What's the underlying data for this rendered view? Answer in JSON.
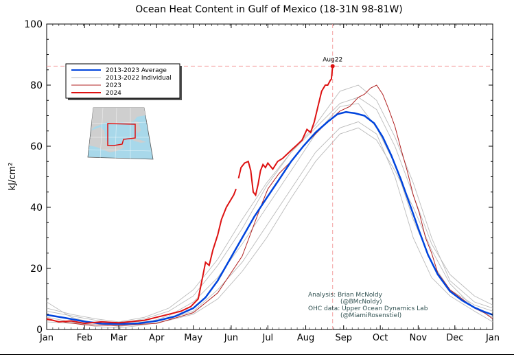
{
  "chart_data": {
    "type": "line",
    "title": "Ocean Heat Content in Gulf of Mexico (18-31N 98-81W)",
    "xlabel": "",
    "ylabel": "kJ/cm²",
    "xlim": [
      0,
      365
    ],
    "ylim": [
      0,
      100
    ],
    "yticks": [
      0,
      20,
      40,
      60,
      80,
      100
    ],
    "x_tick_labels": [
      "Jan",
      "Feb",
      "Mar",
      "Apr",
      "May",
      "Jun",
      "Jul",
      "Aug",
      "Sep",
      "Oct",
      "Nov",
      "Dec",
      "Jan"
    ],
    "x_tick_days": [
      0,
      31,
      59,
      90,
      120,
      151,
      181,
      212,
      243,
      273,
      304,
      334,
      365
    ],
    "grid": false,
    "legend_position": "upper-left",
    "series": [
      {
        "name": "2013-2023 Average",
        "color": "#0044dd",
        "points": [
          [
            0,
            4.8
          ],
          [
            15,
            3.8
          ],
          [
            31,
            2.6
          ],
          [
            45,
            1.9
          ],
          [
            59,
            1.8
          ],
          [
            75,
            2.0
          ],
          [
            90,
            2.8
          ],
          [
            105,
            4.3
          ],
          [
            120,
            7.0
          ],
          [
            130,
            10.5
          ],
          [
            140,
            16.0
          ],
          [
            150,
            23.0
          ],
          [
            160,
            30.0
          ],
          [
            170,
            37.0
          ],
          [
            180,
            43.0
          ],
          [
            190,
            49.0
          ],
          [
            200,
            55.0
          ],
          [
            210,
            60.0
          ],
          [
            220,
            64.5
          ],
          [
            230,
            68.0
          ],
          [
            238,
            70.5
          ],
          [
            245,
            71.2
          ],
          [
            252,
            70.8
          ],
          [
            260,
            70.0
          ],
          [
            268,
            67.5
          ],
          [
            275,
            63.0
          ],
          [
            282,
            57.0
          ],
          [
            290,
            49.0
          ],
          [
            298,
            40.0
          ],
          [
            305,
            32.0
          ],
          [
            312,
            24.5
          ],
          [
            320,
            18.0
          ],
          [
            330,
            12.5
          ],
          [
            340,
            9.5
          ],
          [
            350,
            7.2
          ],
          [
            358,
            5.8
          ],
          [
            365,
            4.8
          ]
        ]
      },
      {
        "name": "2024",
        "color": "#dd1111",
        "points": [
          [
            0,
            3.5
          ],
          [
            10,
            2.5
          ],
          [
            20,
            2.8
          ],
          [
            31,
            2.0
          ],
          [
            45,
            2.5
          ],
          [
            59,
            2.2
          ],
          [
            70,
            2.6
          ],
          [
            80,
            3.0
          ],
          [
            90,
            4.0
          ],
          [
            100,
            5.0
          ],
          [
            110,
            6.0
          ],
          [
            118,
            7.5
          ],
          [
            124,
            10.0
          ],
          [
            127,
            16.0
          ],
          [
            130,
            22.0
          ],
          [
            133,
            21.0
          ],
          [
            136,
            26.0
          ],
          [
            140,
            31.0
          ],
          [
            143,
            36.0
          ],
          [
            147,
            40.0
          ],
          [
            150,
            42.0
          ],
          [
            153,
            44.0
          ],
          [
            155,
            46.0
          ],
          [
            156,
            null
          ],
          [
            157,
            49.5
          ],
          [
            159,
            53.0
          ],
          [
            162,
            54.5
          ],
          [
            165,
            55.0
          ],
          [
            167,
            52.0
          ],
          [
            169,
            45.0
          ],
          [
            171,
            44.0
          ],
          [
            173,
            47.5
          ],
          [
            175,
            52.0
          ],
          [
            177,
            54.0
          ],
          [
            179,
            53.0
          ],
          [
            181,
            54.5
          ],
          [
            185,
            52.5
          ],
          [
            189,
            55.0
          ],
          [
            193,
            56.0
          ],
          [
            197,
            57.5
          ],
          [
            201,
            59.0
          ],
          [
            205,
            60.5
          ],
          [
            209,
            62.0
          ],
          [
            213,
            65.5
          ],
          [
            216,
            64.5
          ],
          [
            219,
            68.0
          ],
          [
            222,
            73.0
          ],
          [
            225,
            78.0
          ],
          [
            228,
            80.0
          ],
          [
            230,
            80.0
          ],
          [
            232,
            81.5
          ],
          [
            233,
            82.0
          ],
          [
            234,
            86.2
          ]
        ]
      },
      {
        "name": "2023",
        "color": "#b02020",
        "points": [
          [
            0,
            3.2
          ],
          [
            31,
            1.5
          ],
          [
            59,
            1.3
          ],
          [
            90,
            2.0
          ],
          [
            120,
            5.5
          ],
          [
            140,
            12.0
          ],
          [
            160,
            24.0
          ],
          [
            175,
            40.0
          ],
          [
            181,
            46.0
          ],
          [
            190,
            51.0
          ],
          [
            200,
            55.0
          ],
          [
            210,
            60.0
          ],
          [
            220,
            64.0
          ],
          [
            230,
            68.0
          ],
          [
            240,
            71.5
          ],
          [
            248,
            73.0
          ],
          [
            255,
            76.0
          ],
          [
            260,
            77.0
          ],
          [
            265,
            79.0
          ],
          [
            270,
            80.0
          ],
          [
            275,
            77.0
          ],
          [
            280,
            72.0
          ],
          [
            285,
            66.5
          ],
          [
            290,
            59.0
          ],
          [
            295,
            52.0
          ],
          [
            300,
            44.0
          ],
          [
            305,
            38.0
          ],
          [
            310,
            30.0
          ],
          [
            315,
            25.0
          ],
          [
            320,
            18.5
          ],
          [
            330,
            13.0
          ],
          [
            340,
            10.0
          ],
          [
            350,
            7.0
          ],
          [
            358,
            5.5
          ],
          [
            365,
            3.5
          ]
        ]
      },
      {
        "name": "2013-2022 Individual",
        "color": "#bbbbbb",
        "points": [
          [
            0,
            9.0
          ],
          [
            20,
            4.0
          ],
          [
            40,
            2.0
          ],
          [
            59,
            1.0
          ],
          [
            80,
            2.0
          ],
          [
            100,
            4.5
          ],
          [
            120,
            9.0
          ],
          [
            140,
            17.0
          ],
          [
            160,
            28.0
          ],
          [
            180,
            40.0
          ],
          [
            200,
            52.0
          ],
          [
            220,
            64.0
          ],
          [
            240,
            73.0
          ],
          [
            255,
            74.0
          ],
          [
            270,
            66.0
          ],
          [
            285,
            54.0
          ],
          [
            300,
            36.0
          ],
          [
            315,
            22.0
          ],
          [
            330,
            13.0
          ],
          [
            350,
            8.0
          ],
          [
            365,
            6.0
          ]
        ]
      },
      {
        "name": "2013-2022 Individual",
        "color": "#bbbbbb",
        "points": [
          [
            0,
            2.5
          ],
          [
            20,
            2.0
          ],
          [
            40,
            1.5
          ],
          [
            59,
            2.5
          ],
          [
            80,
            2.5
          ],
          [
            100,
            3.5
          ],
          [
            120,
            6.0
          ],
          [
            140,
            13.0
          ],
          [
            160,
            22.0
          ],
          [
            180,
            34.0
          ],
          [
            200,
            46.0
          ],
          [
            220,
            58.0
          ],
          [
            240,
            66.0
          ],
          [
            255,
            68.0
          ],
          [
            270,
            64.0
          ],
          [
            285,
            50.0
          ],
          [
            300,
            30.0
          ],
          [
            315,
            17.0
          ],
          [
            330,
            11.0
          ],
          [
            350,
            6.0
          ],
          [
            365,
            2.5
          ]
        ]
      },
      {
        "name": "2013-2022 Individual",
        "color": "#bbbbbb",
        "points": [
          [
            0,
            6.0
          ],
          [
            20,
            4.5
          ],
          [
            40,
            3.0
          ],
          [
            59,
            2.0
          ],
          [
            80,
            3.5
          ],
          [
            100,
            6.0
          ],
          [
            120,
            11.0
          ],
          [
            140,
            21.0
          ],
          [
            160,
            33.0
          ],
          [
            180,
            47.0
          ],
          [
            200,
            58.0
          ],
          [
            220,
            67.0
          ],
          [
            240,
            78.0
          ],
          [
            255,
            80.0
          ],
          [
            270,
            75.0
          ],
          [
            285,
            63.0
          ],
          [
            300,
            48.0
          ],
          [
            315,
            30.0
          ],
          [
            330,
            16.0
          ],
          [
            350,
            9.0
          ],
          [
            365,
            7.0
          ]
        ]
      },
      {
        "name": "2013-2022 Individual",
        "color": "#bbbbbb",
        "points": [
          [
            0,
            4.0
          ],
          [
            20,
            2.5
          ],
          [
            40,
            1.0
          ],
          [
            59,
            0.5
          ],
          [
            80,
            1.5
          ],
          [
            100,
            3.0
          ],
          [
            120,
            5.0
          ],
          [
            140,
            10.0
          ],
          [
            160,
            19.0
          ],
          [
            180,
            30.0
          ],
          [
            200,
            43.0
          ],
          [
            220,
            55.0
          ],
          [
            240,
            64.0
          ],
          [
            255,
            66.0
          ],
          [
            270,
            62.0
          ],
          [
            285,
            52.0
          ],
          [
            300,
            40.0
          ],
          [
            315,
            26.0
          ],
          [
            330,
            15.0
          ],
          [
            350,
            7.0
          ],
          [
            365,
            4.0
          ]
        ]
      },
      {
        "name": "2013-2022 Individual",
        "color": "#bbbbbb",
        "points": [
          [
            0,
            7.0
          ],
          [
            20,
            5.0
          ],
          [
            40,
            3.5
          ],
          [
            59,
            2.5
          ],
          [
            80,
            4.0
          ],
          [
            100,
            7.0
          ],
          [
            120,
            13.0
          ],
          [
            140,
            23.0
          ],
          [
            160,
            36.0
          ],
          [
            180,
            48.0
          ],
          [
            200,
            58.0
          ],
          [
            220,
            66.0
          ],
          [
            240,
            74.0
          ],
          [
            255,
            76.0
          ],
          [
            270,
            72.0
          ],
          [
            285,
            60.0
          ],
          [
            300,
            44.0
          ],
          [
            315,
            28.0
          ],
          [
            330,
            18.0
          ],
          [
            350,
            11.0
          ],
          [
            365,
            8.0
          ]
        ]
      }
    ],
    "annotations": [
      {
        "label": "Aug22",
        "x": 234,
        "y": 86.2
      },
      {
        "label": "Analysis: Brian McNoldy"
      },
      {
        "label": "(@BMcNoldy)"
      },
      {
        "label": "OHC data: Upper Ocean Dynamics Lab"
      },
      {
        "label": "(@MiamiRosenstiel)"
      }
    ],
    "reference_lines": {
      "x": 234,
      "y": 86.2,
      "color": "#f4a0a0"
    }
  },
  "inset_map": {
    "description_name": "gulf-of-mexico-locator-map",
    "colors": {
      "land": "#cfcfcf",
      "water": "#a8d8ea",
      "box": "#dd1111",
      "border": "#666666"
    }
  }
}
